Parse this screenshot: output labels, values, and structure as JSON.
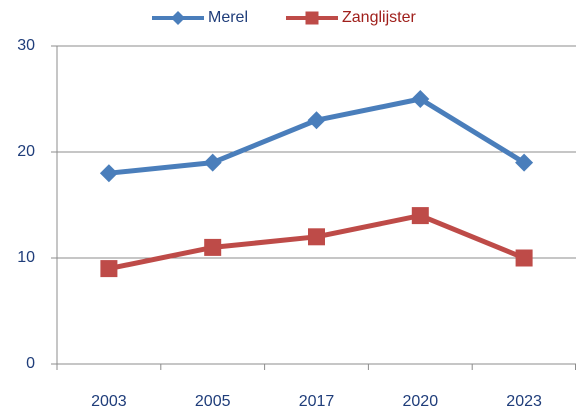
{
  "chart_data": {
    "type": "line",
    "categories": [
      "2003",
      "2005",
      "2017",
      "2020",
      "2023"
    ],
    "series": [
      {
        "name": "Merel",
        "color": "#4a7ebb",
        "marker": "diamond",
        "values": [
          18,
          19,
          23,
          25,
          19
        ]
      },
      {
        "name": "Zanglijster",
        "color": "#be4b48",
        "marker": "square",
        "values": [
          9,
          11,
          12,
          14,
          10
        ]
      }
    ],
    "ylim": [
      0,
      30
    ],
    "yticks": [
      0,
      10,
      20,
      30
    ],
    "grid": true,
    "legend": "top"
  }
}
